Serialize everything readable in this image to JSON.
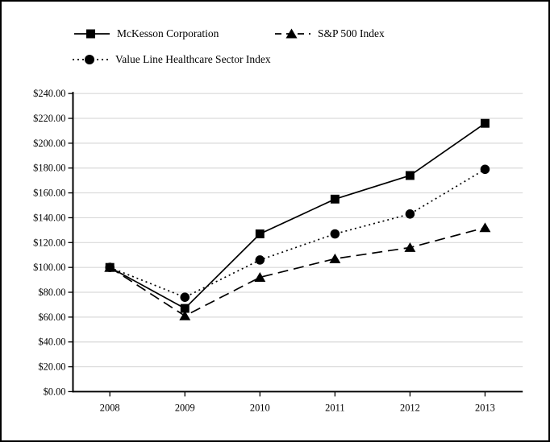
{
  "colors": {
    "line": "#000000",
    "grid": "#d9d9d9",
    "background": "#ffffff",
    "frame_border": "#000000"
  },
  "chart_data": {
    "type": "line",
    "title": "",
    "xlabel": "",
    "ylabel": "",
    "legend_position": "top",
    "grid": true,
    "ylim": [
      0,
      240
    ],
    "y_tick_step": 20,
    "x_tick_labels": [
      "2008",
      "2009",
      "2010",
      "2011",
      "2012",
      "2013"
    ],
    "y_ticks": [
      {
        "label": "$240.00",
        "value": 240
      },
      {
        "label": "$220.00",
        "value": 220
      },
      {
        "label": "$200.00",
        "value": 200
      },
      {
        "label": "$180.00",
        "value": 180
      },
      {
        "label": "$160.00",
        "value": 160
      },
      {
        "label": "$140.00",
        "value": 140
      },
      {
        "label": "$120.00",
        "value": 120
      },
      {
        "label": "$100.00",
        "value": 100
      },
      {
        "label": "$80.00",
        "value": 80
      },
      {
        "label": "$60.00",
        "value": 60
      },
      {
        "label": "$40.00",
        "value": 40
      },
      {
        "label": "$20.00",
        "value": 20
      },
      {
        "label": "$0.00",
        "value": 0
      }
    ],
    "series": [
      {
        "name": "McKesson Corporation",
        "marker": "square",
        "line_style": "solid",
        "values": [
          100,
          67,
          127,
          155,
          174,
          216
        ]
      },
      {
        "name": "S&P 500 Index",
        "marker": "triangle",
        "line_style": "dashed",
        "values": [
          100,
          61,
          92,
          107,
          116,
          132
        ]
      },
      {
        "name": "Value Line Healthcare Sector Index",
        "marker": "circle",
        "line_style": "dotted",
        "values": [
          100,
          76,
          106,
          127,
          143,
          179
        ]
      }
    ]
  }
}
